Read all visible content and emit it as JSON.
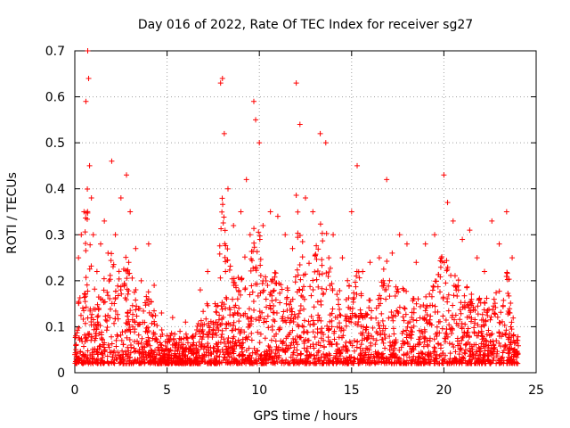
{
  "chart_data": {
    "type": "scatter",
    "title": "Day 016 of 2022, Rate Of TEC Index for receiver sg27",
    "xlabel": "GPS time / hours",
    "ylabel": "ROTI / TECUs",
    "xlim": [
      0,
      25
    ],
    "ylim": [
      0,
      0.7
    ],
    "x_ticks": [
      "0",
      "5",
      "10",
      "15",
      "20",
      "25"
    ],
    "y_ticks": [
      "0",
      "0.1",
      "0.2",
      "0.3",
      "0.4",
      "0.5",
      "0.6",
      "0.7"
    ],
    "grid": true,
    "legend": "none",
    "marker": "+",
    "series": [
      {
        "color": "#ff0000",
        "x": [
          0.05,
          0.2,
          0.35,
          0.5,
          0.6,
          0.7,
          0.75,
          0.8,
          0.9,
          1.0,
          1.2,
          1.4,
          1.6,
          1.8,
          2.0,
          2.2,
          2.5,
          2.8,
          3.0,
          3.3,
          3.6,
          4.0,
          4.3,
          4.7,
          5.0,
          5.3,
          5.7,
          6.0,
          6.4,
          6.8,
          7.2,
          7.6,
          7.9,
          8.0,
          8.1,
          8.3,
          8.6,
          9.0,
          9.3,
          9.5,
          9.7,
          9.8,
          10.0,
          10.2,
          10.6,
          11.0,
          11.4,
          11.8,
          12.0,
          12.2,
          12.5,
          12.9,
          13.3,
          13.6,
          14.0,
          14.5,
          15.0,
          15.3,
          15.6,
          16.0,
          16.5,
          16.9,
          17.2,
          17.6,
          18.0,
          18.5,
          19.0,
          19.5,
          20.0,
          20.2,
          20.5,
          21.0,
          21.4,
          21.8,
          22.2,
          22.6,
          23.0,
          23.4,
          23.7,
          24.0
        ],
        "y": [
          0.08,
          0.25,
          0.3,
          0.35,
          0.59,
          0.7,
          0.64,
          0.45,
          0.38,
          0.3,
          0.22,
          0.28,
          0.33,
          0.26,
          0.46,
          0.3,
          0.38,
          0.43,
          0.35,
          0.27,
          0.2,
          0.28,
          0.19,
          0.13,
          0.08,
          0.12,
          0.09,
          0.11,
          0.08,
          0.18,
          0.22,
          0.15,
          0.63,
          0.64,
          0.52,
          0.4,
          0.32,
          0.35,
          0.42,
          0.3,
          0.59,
          0.55,
          0.5,
          0.32,
          0.35,
          0.34,
          0.3,
          0.27,
          0.63,
          0.54,
          0.38,
          0.35,
          0.52,
          0.5,
          0.3,
          0.25,
          0.35,
          0.45,
          0.22,
          0.24,
          0.25,
          0.42,
          0.26,
          0.3,
          0.28,
          0.24,
          0.28,
          0.3,
          0.43,
          0.37,
          0.33,
          0.29,
          0.31,
          0.25,
          0.22,
          0.33,
          0.28,
          0.35,
          0.25,
          0.07
        ]
      }
    ]
  }
}
